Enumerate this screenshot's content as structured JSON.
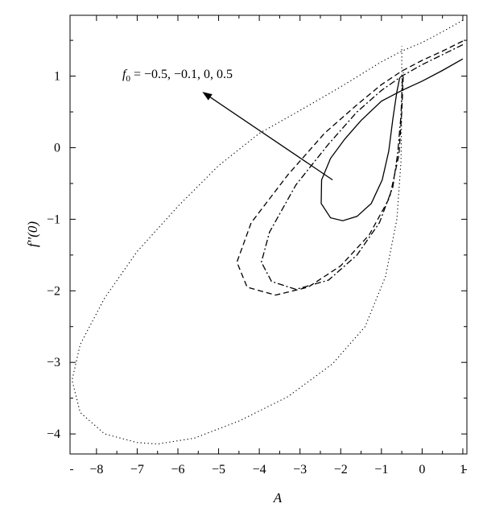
{
  "chart_data": {
    "type": "line",
    "xlabel": "A",
    "ylabel": "f′′(0)",
    "xlim": [
      -8.65,
      1.1
    ],
    "ylim": [
      -4.28,
      1.85
    ],
    "xticks": [
      -8,
      -7,
      -6,
      -5,
      -4,
      -3,
      -2,
      -1,
      0,
      1
    ],
    "yticks": [
      -4,
      -3,
      -2,
      -1,
      0,
      1
    ],
    "x_tick_labels": [
      "−8",
      "−7",
      "−6",
      "−5",
      "−4",
      "−3",
      "−2",
      "−1",
      "0",
      "1"
    ],
    "y_tick_labels": [
      "−4",
      "−3",
      "−2",
      "−1",
      "0",
      "1"
    ],
    "annotation": {
      "text_prefix": "f",
      "text_sub": "0",
      "text_rest": " = −0.5, −0.1, 0, 0.5",
      "arrow_from": [
        -2.2,
        -0.45
      ],
      "arrow_to": [
        -5.4,
        0.78
      ]
    },
    "grid": false,
    "legend": "none",
    "series": [
      {
        "style": "solid",
        "points": [
          [
            1.0,
            1.24
          ],
          [
            0.5,
            1.08
          ],
          [
            0,
            0.93
          ],
          [
            -0.5,
            0.8
          ],
          [
            -1.0,
            0.65
          ],
          [
            -1.5,
            0.38
          ],
          [
            -1.9,
            0.12
          ],
          [
            -2.25,
            -0.15
          ],
          [
            -2.47,
            -0.45
          ],
          [
            -2.48,
            -0.78
          ],
          [
            -2.25,
            -0.98
          ],
          [
            -1.95,
            -1.02
          ],
          [
            -1.6,
            -0.96
          ],
          [
            -1.25,
            -0.78
          ],
          [
            -0.98,
            -0.45
          ],
          [
            -0.82,
            -0.05
          ],
          [
            -0.72,
            0.4
          ],
          [
            -0.62,
            0.78
          ],
          [
            -0.55,
            0.98
          ]
        ]
      },
      {
        "style": "dashdot",
        "points": [
          [
            1.0,
            1.44
          ],
          [
            0.5,
            1.3
          ],
          [
            0,
            1.16
          ],
          [
            -0.5,
            1.0
          ],
          [
            -1.0,
            0.8
          ],
          [
            -1.6,
            0.5
          ],
          [
            -2.3,
            0.05
          ],
          [
            -3.1,
            -0.52
          ],
          [
            -3.75,
            -1.18
          ],
          [
            -3.95,
            -1.6
          ],
          [
            -3.7,
            -1.87
          ],
          [
            -3.1,
            -1.98
          ],
          [
            -2.3,
            -1.85
          ],
          [
            -1.6,
            -1.5
          ],
          [
            -1.05,
            -1.05
          ],
          [
            -0.72,
            -0.55
          ],
          [
            -0.6,
            -0.08
          ],
          [
            -0.52,
            0.45
          ],
          [
            -0.48,
            1.0
          ]
        ]
      },
      {
        "style": "dashed",
        "points": [
          [
            1.0,
            1.49
          ],
          [
            0.5,
            1.35
          ],
          [
            0,
            1.22
          ],
          [
            -0.5,
            1.07
          ],
          [
            -1.0,
            0.88
          ],
          [
            -1.6,
            0.6
          ],
          [
            -2.4,
            0.2
          ],
          [
            -3.3,
            -0.38
          ],
          [
            -4.2,
            -1.05
          ],
          [
            -4.55,
            -1.6
          ],
          [
            -4.3,
            -1.95
          ],
          [
            -3.6,
            -2.06
          ],
          [
            -2.8,
            -1.95
          ],
          [
            -2.0,
            -1.65
          ],
          [
            -1.3,
            -1.22
          ],
          [
            -0.8,
            -0.7
          ],
          [
            -0.57,
            -0.1
          ],
          [
            -0.5,
            0.5
          ],
          [
            -0.46,
            1.05
          ]
        ]
      },
      {
        "style": "dotted",
        "points": [
          [
            1.0,
            1.78
          ],
          [
            0.5,
            1.62
          ],
          [
            0,
            1.47
          ],
          [
            -0.5,
            1.35
          ],
          [
            -1.0,
            1.2
          ],
          [
            -2.0,
            0.85
          ],
          [
            -3.0,
            0.52
          ],
          [
            -4.0,
            0.2
          ],
          [
            -5.0,
            -0.25
          ],
          [
            -6.0,
            -0.82
          ],
          [
            -7.0,
            -1.45
          ],
          [
            -7.8,
            -2.1
          ],
          [
            -8.4,
            -2.75
          ],
          [
            -8.6,
            -3.25
          ],
          [
            -8.4,
            -3.7
          ],
          [
            -7.8,
            -4.0
          ],
          [
            -7.0,
            -4.12
          ],
          [
            -6.5,
            -4.14
          ],
          [
            -5.6,
            -4.06
          ],
          [
            -4.5,
            -3.82
          ],
          [
            -3.3,
            -3.48
          ],
          [
            -2.2,
            -3.02
          ],
          [
            -1.4,
            -2.5
          ],
          [
            -0.9,
            -1.8
          ],
          [
            -0.62,
            -1.0
          ],
          [
            -0.52,
            -0.2
          ],
          [
            -0.5,
            0.55
          ],
          [
            -0.5,
            1.42
          ]
        ]
      }
    ]
  }
}
